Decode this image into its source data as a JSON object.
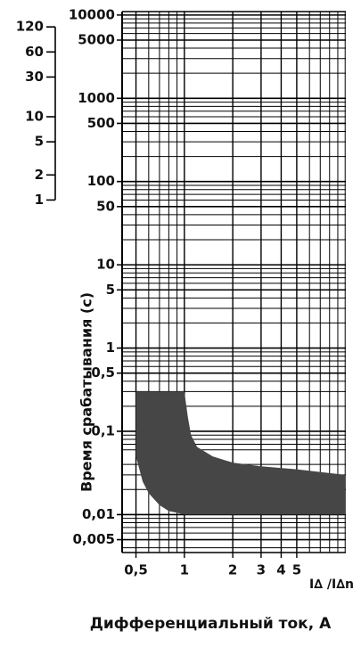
{
  "chart_data": {
    "type": "band",
    "y_axis_title": "Время срабатывания (с)",
    "x_unit_label": "I∆ /I∆n",
    "x_axis_title": "Дифференциальный ток, А",
    "xscale": "log",
    "yscale": "log",
    "grid": true,
    "xlim": [
      0.41,
      10.1
    ],
    "xticks": [
      {
        "value": 0.5,
        "label": "0,5"
      },
      1,
      2,
      3,
      4,
      5
    ],
    "xminorticks": [
      0.6,
      0.7,
      0.8,
      0.9,
      6,
      7,
      8,
      9,
      10
    ],
    "ylim": [
      0.0035,
      11000
    ],
    "yticks": [
      10000,
      5000,
      1000,
      500,
      100,
      50,
      10,
      5,
      1,
      {
        "value": 0.5,
        "label": "0,5"
      },
      {
        "value": 0.1,
        "label": "0,1"
      },
      {
        "value": 0.01,
        "label": "0,01"
      },
      {
        "value": 0.005,
        "label": "0,005"
      }
    ],
    "yminorticks": [
      0.004,
      0.006,
      0.007,
      0.008,
      0.009,
      0.02,
      0.03,
      0.04,
      0.06,
      0.07,
      0.08,
      0.09,
      0.2,
      0.3,
      0.4,
      0.6,
      0.7,
      0.8,
      0.9,
      2,
      3,
      4,
      6,
      7,
      8,
      9,
      20,
      30,
      40,
      60,
      70,
      80,
      90,
      200,
      300,
      400,
      600,
      700,
      800,
      900,
      2000,
      3000,
      4000,
      6000,
      7000,
      8000,
      9000
    ],
    "y2lim": [
      5.83e-05,
      183.3
    ],
    "y2ticks": [
      120,
      60,
      30,
      10,
      5,
      2,
      1
    ],
    "color": "#464646",
    "x": [
      0.5,
      0.55,
      0.6,
      0.7,
      0.8,
      0.9,
      1,
      1.05,
      1.1,
      1.2,
      1.5,
      2,
      3,
      5,
      10
    ],
    "upper": [
      0.3,
      0.3,
      0.3,
      0.3,
      0.3,
      0.3,
      0.3,
      0.15,
      0.09,
      0.065,
      0.05,
      0.042,
      0.038,
      0.035,
      0.03
    ],
    "lower": [
      0.05,
      0.025,
      0.018,
      0.013,
      0.011,
      0.0105,
      0.01,
      0.01,
      0.01,
      0.01,
      0.01,
      0.01,
      0.01,
      0.01,
      0.01
    ]
  }
}
